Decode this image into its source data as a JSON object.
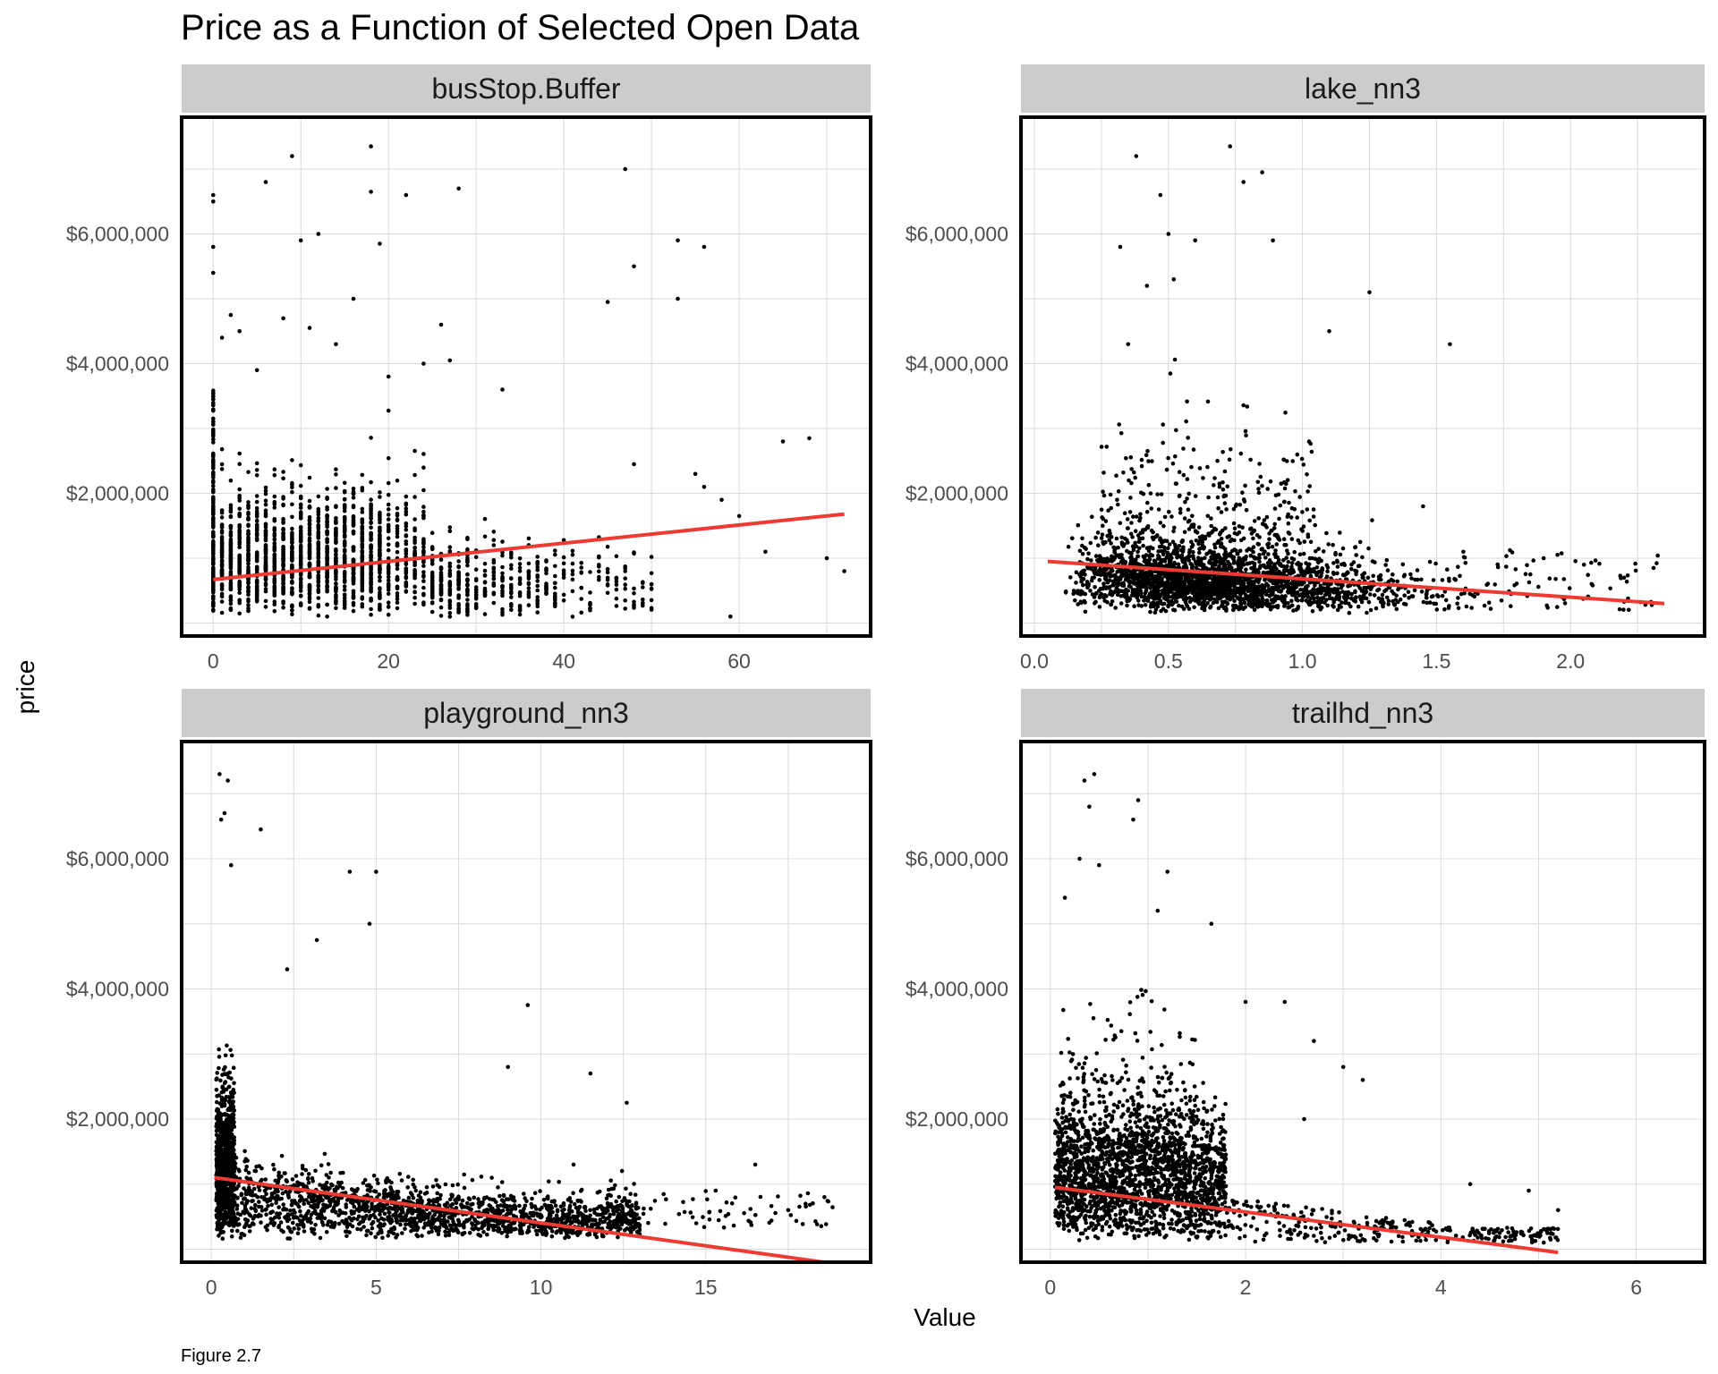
{
  "title": "Price as a Function of Selected Open Data",
  "xlabel": "Value",
  "ylabel": "price",
  "caption": "Figure 2.7",
  "colors": {
    "strip": "#cccccc",
    "grid": "#d9d9d9",
    "point": "#000000",
    "fit_line": "#ee3a32",
    "panel_border": "#000000",
    "tick_text": "#4d4d4d"
  },
  "chart_data": [
    {
      "type": "scatter",
      "facet": "busStop.Buffer",
      "xlim": [
        -3.6,
        75
      ],
      "ylim": [
        -200000,
        7800000
      ],
      "xticks": [
        0,
        20,
        40,
        60
      ],
      "xtick_labels": [
        "0",
        "20",
        "40",
        "60"
      ],
      "yticks": [
        2000000,
        4000000,
        6000000
      ],
      "ytick_labels": [
        "$2,000,000",
        "$4,000,000",
        "$6,000,000"
      ],
      "fit_line": {
        "x": [
          0,
          72
        ],
        "y": [
          670000,
          1680000
        ]
      },
      "points": {
        "x": [
          0,
          0,
          0,
          0,
          1,
          2,
          6,
          9,
          10,
          12,
          18,
          18,
          19,
          22,
          28,
          47,
          48,
          53,
          53,
          56,
          45,
          5,
          3,
          8,
          11,
          14,
          16,
          20,
          24,
          26,
          27,
          33,
          48,
          55,
          56,
          58,
          60,
          63,
          65,
          68,
          70,
          72,
          40,
          50,
          59
        ],
        "y": [
          6600000,
          6500000,
          5800000,
          5400000,
          4400000,
          4750000,
          6800000,
          7200000,
          5900000,
          6000000,
          7350000,
          6650000,
          5850000,
          6600000,
          6700000,
          7000000,
          5500000,
          5900000,
          5000000,
          5800000,
          4950000,
          3900000,
          4500000,
          4700000,
          4550000,
          4300000,
          5000000,
          3800000,
          4000000,
          4600000,
          4050000,
          3600000,
          2450000,
          2300000,
          2100000,
          1900000,
          1650000,
          1100000,
          2800000,
          2850000,
          1000000,
          800000,
          700000,
          600000,
          100000
        ]
      },
      "dense_region": "x 0–50, price 0–3,500,000"
    },
    {
      "type": "scatter",
      "facet": "lake_nn3",
      "xlim": [
        -0.05,
        2.5
      ],
      "ylim": [
        -200000,
        7800000
      ],
      "xticks": [
        0.0,
        0.5,
        1.0,
        1.5,
        2.0
      ],
      "xtick_labels": [
        "0.0",
        "0.5",
        "1.0",
        "1.5",
        "2.0"
      ],
      "yticks": [
        2000000,
        4000000,
        6000000
      ],
      "ytick_labels": [
        "$2,000,000",
        "$4,000,000",
        "$6,000,000"
      ],
      "fit_line": {
        "x": [
          0.05,
          2.35
        ],
        "y": [
          950000,
          300000
        ]
      },
      "points": {
        "x": [
          0.38,
          0.73,
          0.85,
          0.47,
          0.5,
          0.32,
          0.6,
          0.78,
          0.89,
          1.1,
          1.25,
          0.52,
          1.6,
          1.9,
          2.2,
          2.05,
          1.45,
          0.35,
          0.42,
          1.55
        ],
        "y": [
          7200000,
          7350000,
          6950000,
          6600000,
          6000000,
          5800000,
          5900000,
          6800000,
          5900000,
          4500000,
          5100000,
          5300000,
          1100000,
          1000000,
          700000,
          900000,
          1800000,
          4300000,
          5200000,
          4300000
        ]
      },
      "dense_region": "x 0.1–1.6, price 0–3,000,000"
    },
    {
      "type": "scatter",
      "facet": "playground_nn3",
      "xlim": [
        -0.9,
        20
      ],
      "ylim": [
        -200000,
        7800000
      ],
      "xticks": [
        0,
        5,
        10,
        15
      ],
      "xtick_labels": [
        "0",
        "5",
        "10",
        "15"
      ],
      "yticks": [
        2000000,
        4000000,
        6000000
      ],
      "ytick_labels": [
        "$2,000,000",
        "$4,000,000",
        "$6,000,000"
      ],
      "fit_line": {
        "x": [
          0.1,
          19
        ],
        "y": [
          1100000,
          -230000
        ]
      },
      "points": {
        "x": [
          0.25,
          0.5,
          0.4,
          0.3,
          0.6,
          1.5,
          4.2,
          5.0,
          4.8,
          3.2,
          2.3,
          9.6,
          9.0,
          11.5,
          12.6,
          15.3,
          16.5,
          17.5,
          18.6
        ],
        "y": [
          7300000,
          7200000,
          6700000,
          6600000,
          5900000,
          6450000,
          5800000,
          5800000,
          5000000,
          4750000,
          4300000,
          3750000,
          2800000,
          2700000,
          2250000,
          900000,
          1300000,
          600000,
          800000
        ]
      },
      "dense_region": "x 0–13, price 0–2,500,000"
    },
    {
      "type": "scatter",
      "facet": "trailhd_nn3",
      "xlim": [
        -0.3,
        6.7
      ],
      "ylim": [
        -200000,
        7800000
      ],
      "xticks": [
        0,
        2,
        4,
        6
      ],
      "xtick_labels": [
        "0",
        "2",
        "4",
        "6"
      ],
      "yticks": [
        2000000,
        4000000,
        6000000
      ],
      "ytick_labels": [
        "$2,000,000",
        "$4,000,000",
        "$6,000,000"
      ],
      "fit_line": {
        "x": [
          0.05,
          5.2
        ],
        "y": [
          950000,
          -50000
        ]
      },
      "points": {
        "x": [
          0.35,
          0.45,
          0.4,
          0.9,
          0.85,
          1.2,
          0.15,
          0.3,
          0.5,
          1.1,
          1.65,
          2.0,
          2.4,
          2.7,
          3.0,
          4.9,
          5.2,
          3.2,
          2.6,
          4.3
        ],
        "y": [
          7200000,
          7300000,
          6800000,
          6900000,
          6600000,
          5800000,
          5400000,
          6000000,
          5900000,
          5200000,
          5000000,
          3800000,
          3800000,
          3200000,
          2800000,
          900000,
          600000,
          2600000,
          2000000,
          1000000
        ]
      },
      "dense_region": "x 0–1.8, price 0–3,500,000"
    }
  ]
}
